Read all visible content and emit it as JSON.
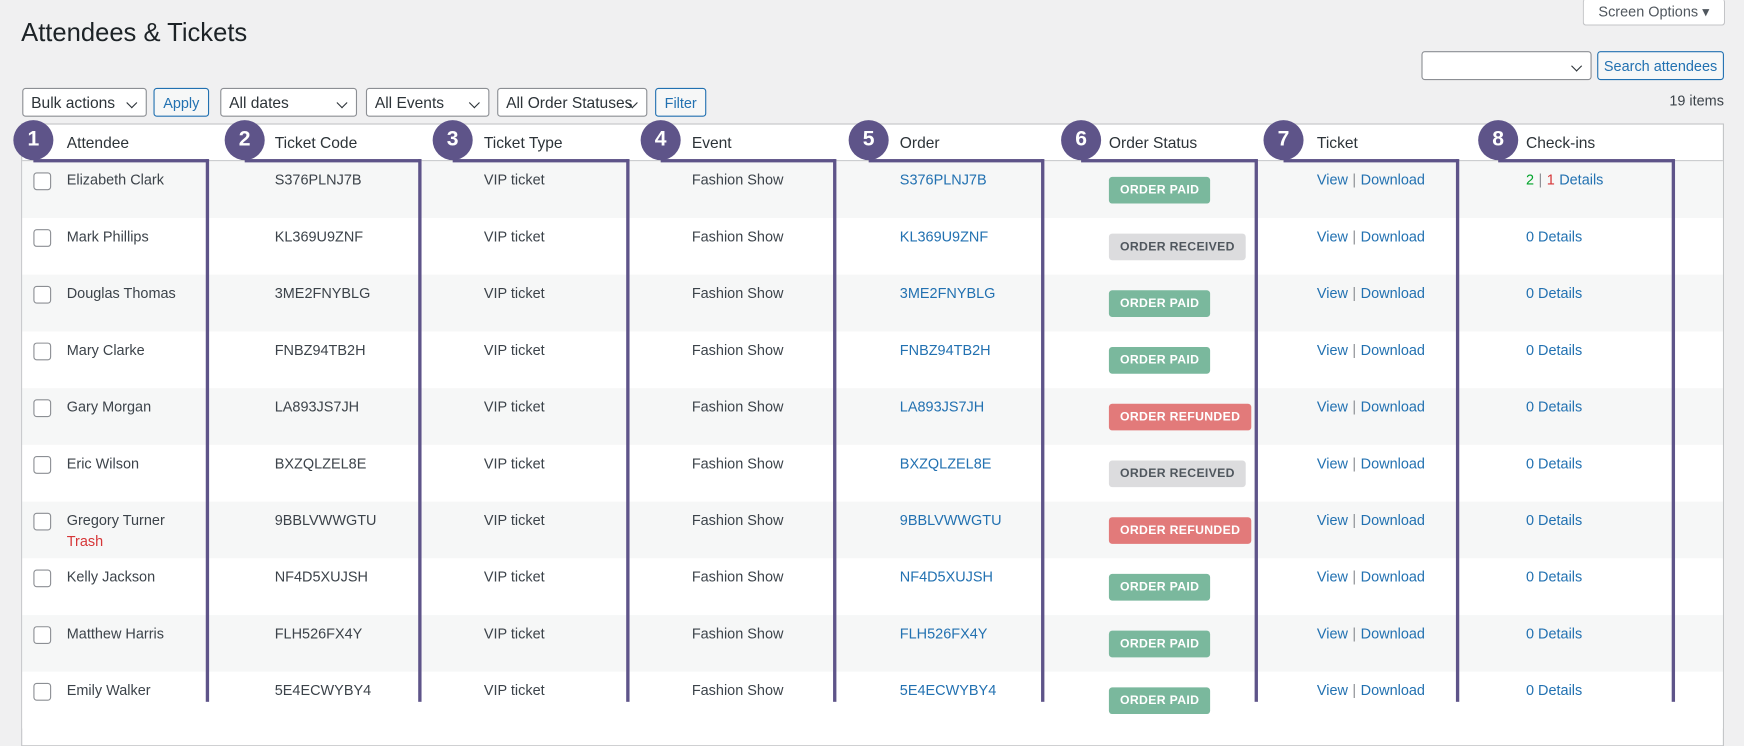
{
  "header": {
    "title": "Attendees & Tickets",
    "screen_options": "Screen Options ▾"
  },
  "search": {
    "button": "Search attendees"
  },
  "toolbar": {
    "bulk_actions": "Bulk actions",
    "apply": "Apply",
    "dates": "All dates",
    "events": "All Events",
    "statuses": "All Order Statuses",
    "filter": "Filter",
    "items": "19 items"
  },
  "table": {
    "columns": [
      {
        "number": "1",
        "label": "Attendee"
      },
      {
        "number": "2",
        "label": "Ticket Code"
      },
      {
        "number": "3",
        "label": "Ticket Type"
      },
      {
        "number": "4",
        "label": "Event"
      },
      {
        "number": "5",
        "label": "Order"
      },
      {
        "number": "6",
        "label": "Order Status"
      },
      {
        "number": "7",
        "label": "Ticket"
      },
      {
        "number": "8",
        "label": "Check-ins"
      }
    ],
    "separator": "|",
    "rows": [
      {
        "name": "Elizabeth Clark",
        "code": "S376PLNJ7B",
        "type": "VIP ticket",
        "event": "Fashion Show",
        "order": "S376PLNJ7B",
        "status": "ORDER PAID",
        "view": "View",
        "download": "Download",
        "checkins": [
          "2",
          "|",
          "1",
          "Details"
        ]
      },
      {
        "name": "Mark Phillips",
        "code": "KL369U9ZNF",
        "type": "VIP ticket",
        "event": "Fashion Show",
        "order": "KL369U9ZNF",
        "status": "ORDER RECEIVED",
        "view": "View",
        "download": "Download",
        "checkins": [
          "0 Details"
        ]
      },
      {
        "name": "Douglas Thomas",
        "code": "3ME2FNYBLG",
        "type": "VIP ticket",
        "event": "Fashion Show",
        "order": "3ME2FNYBLG",
        "status": "ORDER PAID",
        "view": "View",
        "download": "Download",
        "checkins": [
          "0 Details"
        ]
      },
      {
        "name": "Mary Clarke",
        "code": "FNBZ94TB2H",
        "type": "VIP ticket",
        "event": "Fashion Show",
        "order": "FNBZ94TB2H",
        "status": "ORDER PAID",
        "view": "View",
        "download": "Download",
        "checkins": [
          "0 Details"
        ]
      },
      {
        "name": "Gary Morgan",
        "code": "LA893JS7JH",
        "type": "VIP ticket",
        "event": "Fashion Show",
        "order": "LA893JS7JH",
        "status": "ORDER REFUNDED",
        "view": "View",
        "download": "Download",
        "checkins": [
          "0 Details"
        ]
      },
      {
        "name": "Eric Wilson",
        "code": "BXZQLZEL8E",
        "type": "VIP ticket",
        "event": "Fashion Show",
        "order": "BXZQLZEL8E",
        "status": "ORDER RECEIVED",
        "view": "View",
        "download": "Download",
        "checkins": [
          "0 Details"
        ]
      },
      {
        "name": "Gregory Turner",
        "trash": "Trash",
        "code": "9BBLVWWGTU",
        "type": "VIP ticket",
        "event": "Fashion Show",
        "order": "9BBLVWWGTU",
        "status": "ORDER REFUNDED",
        "view": "View",
        "download": "Download",
        "checkins": [
          "0 Details"
        ]
      },
      {
        "name": "Kelly Jackson",
        "code": "NF4D5XUJSH",
        "type": "VIP ticket",
        "event": "Fashion Show",
        "order": "NF4D5XUJSH",
        "status": "ORDER PAID",
        "view": "View",
        "download": "Download",
        "checkins": [
          "0 Details"
        ]
      },
      {
        "name": "Matthew Harris",
        "code": "FLH526FX4Y",
        "type": "VIP ticket",
        "event": "Fashion Show",
        "order": "FLH526FX4Y",
        "status": "ORDER PAID",
        "view": "View",
        "download": "Download",
        "checkins": [
          "0 Details"
        ]
      },
      {
        "name": "Emily Walker",
        "code": "5E4ECWYBY4",
        "type": "VIP ticket",
        "event": "Fashion Show",
        "order": "5E4ECWYBY4",
        "status": "ORDER PAID",
        "view": "View",
        "download": "Download",
        "checkins": [
          "0 Details"
        ]
      }
    ]
  }
}
